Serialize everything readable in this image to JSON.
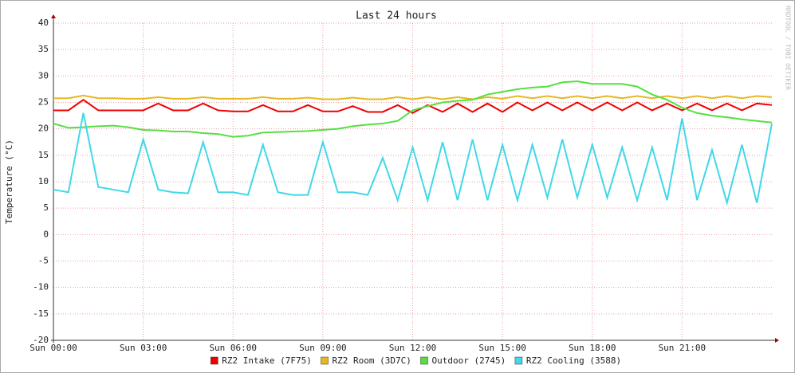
{
  "chart_data": {
    "type": "line",
    "title": "Last 24 hours",
    "y_label": "Temperature (°C)",
    "watermark": "RRDTOOL / TOBI OETIKER",
    "xlim": [
      0,
      24
    ],
    "xticks": [
      {
        "value": 0,
        "label": "Sun 00:00"
      },
      {
        "value": 3,
        "label": "Sun 03:00"
      },
      {
        "value": 6,
        "label": "Sun 06:00"
      },
      {
        "value": 9,
        "label": "Sun 09:00"
      },
      {
        "value": 12,
        "label": "Sun 12:00"
      },
      {
        "value": 15,
        "label": "Sun 15:00"
      },
      {
        "value": 18,
        "label": "Sun 18:00"
      },
      {
        "value": 21,
        "label": "Sun 21:00"
      }
    ],
    "ylim": [
      -20,
      40
    ],
    "yticks": [
      -20,
      -15,
      -10,
      -5,
      0,
      5,
      10,
      15,
      20,
      25,
      30,
      35,
      40
    ],
    "grid": true,
    "legend": "bottom",
    "x": [
      0,
      0.5,
      1,
      1.5,
      2,
      2.5,
      3,
      3.5,
      4,
      4.5,
      5,
      5.5,
      6,
      6.5,
      7,
      7.5,
      8,
      8.5,
      9,
      9.5,
      10,
      10.5,
      11,
      11.5,
      12,
      12.5,
      13,
      13.5,
      14,
      14.5,
      15,
      15.5,
      16,
      16.5,
      17,
      17.5,
      18,
      18.5,
      19,
      19.5,
      20,
      20.5,
      21,
      21.5,
      22,
      22.5,
      23,
      23.5,
      24
    ],
    "series": [
      {
        "name": "RZ2 Intake (7F75)",
        "color": "#ee0000",
        "values": [
          23.5,
          23.5,
          25.5,
          23.5,
          23.5,
          23.5,
          23.5,
          24.8,
          23.5,
          23.5,
          24.8,
          23.5,
          23.3,
          23.3,
          24.5,
          23.3,
          23.3,
          24.5,
          23.3,
          23.3,
          24.3,
          23.2,
          23.2,
          24.5,
          23.0,
          24.5,
          23.2,
          24.8,
          23.2,
          24.8,
          23.2,
          25.0,
          23.5,
          25.0,
          23.5,
          25.0,
          23.5,
          25.0,
          23.5,
          25.0,
          23.5,
          24.8,
          23.5,
          24.8,
          23.5,
          24.8,
          23.5,
          24.8,
          24.5
        ]
      },
      {
        "name": "RZ2 Room (3D7C)",
        "color": "#e6b820",
        "values": [
          25.8,
          25.8,
          26.3,
          25.8,
          25.8,
          25.7,
          25.7,
          26.0,
          25.7,
          25.7,
          26.0,
          25.7,
          25.7,
          25.7,
          26.0,
          25.7,
          25.7,
          25.9,
          25.6,
          25.6,
          25.9,
          25.6,
          25.6,
          26.0,
          25.6,
          26.0,
          25.6,
          26.0,
          25.6,
          26.0,
          25.7,
          26.2,
          25.8,
          26.2,
          25.8,
          26.2,
          25.8,
          26.2,
          25.8,
          26.2,
          25.8,
          26.2,
          25.8,
          26.2,
          25.8,
          26.2,
          25.8,
          26.2,
          26.0
        ]
      },
      {
        "name": "Outdoor (2745)",
        "color": "#55e040",
        "values": [
          21.0,
          20.2,
          20.3,
          20.5,
          20.6,
          20.3,
          19.8,
          19.7,
          19.5,
          19.5,
          19.2,
          19.0,
          18.5,
          18.7,
          19.3,
          19.4,
          19.5,
          19.6,
          19.8,
          20.0,
          20.5,
          20.8,
          21.0,
          21.5,
          23.5,
          24.3,
          25.0,
          25.3,
          25.5,
          26.5,
          27.0,
          27.5,
          27.8,
          28.0,
          28.8,
          29.0,
          28.5,
          28.5,
          28.5,
          28.0,
          26.5,
          25.5,
          24.0,
          23.0,
          22.5,
          22.2,
          21.8,
          21.5,
          21.2
        ]
      },
      {
        "name": "RZ2 Cooling (3588)",
        "color": "#40d8e8",
        "values": [
          8.5,
          8.0,
          23.0,
          9.0,
          8.5,
          8.0,
          18.0,
          8.5,
          8.0,
          7.8,
          17.5,
          8.0,
          8.0,
          7.5,
          17.0,
          8.0,
          7.5,
          7.5,
          17.5,
          8.0,
          8.0,
          7.5,
          14.5,
          6.5,
          16.5,
          6.5,
          17.5,
          6.5,
          18.0,
          6.5,
          17.0,
          6.5,
          17.0,
          7.0,
          18.0,
          7.0,
          17.0,
          7.0,
          16.5,
          6.5,
          16.5,
          6.5,
          22.0,
          6.5,
          16.0,
          6.0,
          17.0,
          6.0,
          21.0
        ]
      }
    ]
  }
}
